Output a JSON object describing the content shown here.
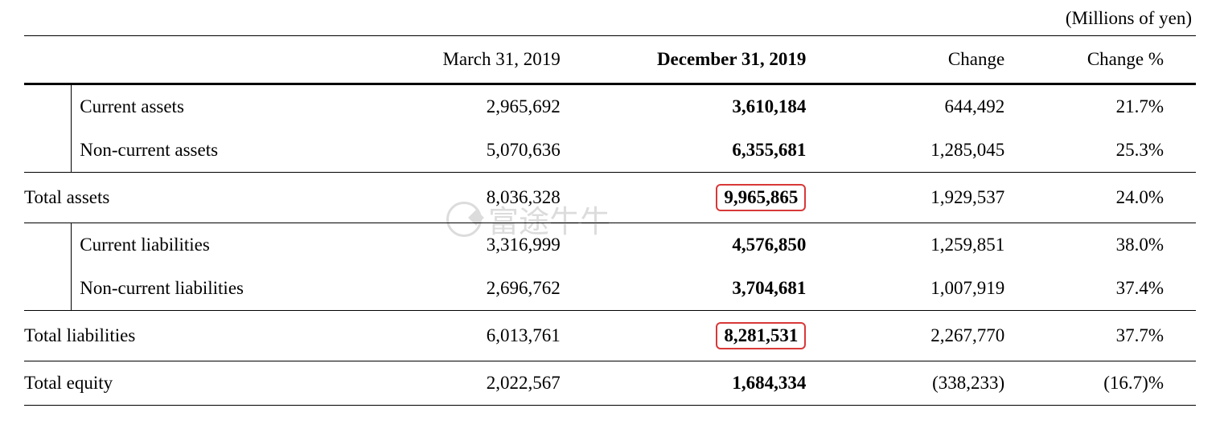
{
  "unit_label": "(Millions of yen)",
  "columns": {
    "col_label": "",
    "col_march": "March 31, 2019",
    "col_dec": "December 31, 2019",
    "col_change": "Change",
    "col_changepct": "Change %"
  },
  "rows": {
    "current_assets": {
      "label": "Current assets",
      "march": "2,965,692",
      "dec": "3,610,184",
      "change": "644,492",
      "changepct": "21.7%"
    },
    "noncurrent_assets": {
      "label": "Non-current assets",
      "march": "5,070,636",
      "dec": "6,355,681",
      "change": "1,285,045",
      "changepct": "25.3%"
    },
    "total_assets": {
      "label": "Total assets",
      "march": "8,036,328",
      "dec": "9,965,865",
      "change": "1,929,537",
      "changepct": "24.0%"
    },
    "current_liabilities": {
      "label": "Current liabilities",
      "march": "3,316,999",
      "dec": "4,576,850",
      "change": "1,259,851",
      "changepct": "38.0%"
    },
    "noncurrent_liabilities": {
      "label": "Non-current liabilities",
      "march": "2,696,762",
      "dec": "3,704,681",
      "change": "1,007,919",
      "changepct": "37.4%"
    },
    "total_liabilities": {
      "label": "Total liabilities",
      "march": "6,013,761",
      "dec": "8,281,531",
      "change": "2,267,770",
      "changepct": "37.7%"
    },
    "total_equity": {
      "label": "Total equity",
      "march": "2,022,567",
      "dec": "1,684,334",
      "change": "(338,233)",
      "changepct": "(16.7)%"
    }
  },
  "watermark_text": "富途牛牛",
  "style": {
    "highlight_border_color": "#d93838",
    "font_family": "Times New Roman",
    "base_fontsize": 23,
    "text_color": "#000000",
    "background_color": "#ffffff",
    "watermark_color": "#dcdcdc"
  }
}
